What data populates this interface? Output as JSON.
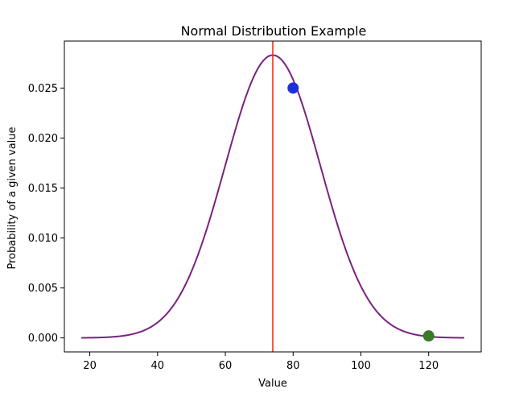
{
  "chart_data": {
    "type": "line",
    "title": "Normal Distribution Example",
    "xlabel": "Value",
    "ylabel": "Probability of a given value",
    "xlim": [
      12.5,
      135.5
    ],
    "ylim": [
      -0.0014,
      0.0297
    ],
    "xticks": [
      20,
      40,
      60,
      80,
      100,
      120
    ],
    "xtick_labels": [
      "20",
      "40",
      "60",
      "80",
      "100",
      "120"
    ],
    "yticks": [
      0.0,
      0.005,
      0.01,
      0.015,
      0.02,
      0.025
    ],
    "ytick_labels": [
      "0.000",
      "0.005",
      "0.010",
      "0.015",
      "0.020",
      "0.025"
    ],
    "grid": false,
    "series": [
      {
        "name": "normal pdf",
        "kind": "curve",
        "distribution": "normal",
        "mean": 74,
        "std": 14.1,
        "x_range": [
          17.5,
          130.5
        ],
        "color": "#7b2183"
      }
    ],
    "vlines": [
      {
        "name": "mean line",
        "x": 74,
        "color": "#ff2a12"
      }
    ],
    "points": [
      {
        "name": "blue point",
        "x": 80,
        "y": 0.025,
        "color": "#1f2fe0"
      },
      {
        "name": "green point",
        "x": 120,
        "y": 0.0002,
        "color": "#3a7a2a"
      }
    ]
  }
}
